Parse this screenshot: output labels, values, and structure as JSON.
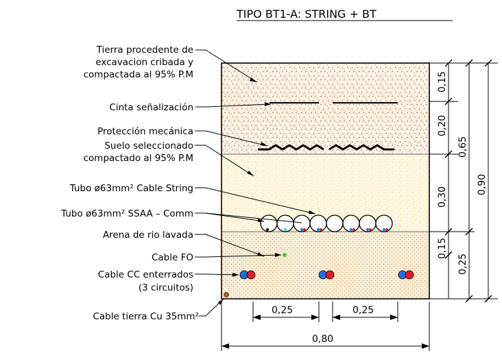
{
  "title": "TIPO BT1-A: STRING + BT",
  "labels": {
    "tierra_1": "Tierra procedente de",
    "tierra_2": "excavacion cribada y",
    "tierra_3": "compactada al 95% P.M",
    "cinta": "Cinta señalización",
    "proteccion": "Protección mecánica",
    "suelo_1": "Suelo seleccionado",
    "suelo_2": "compactado al 95% P.M",
    "tubo_string": "Tubo ø63mm² Cable String",
    "tubo_ssaa": "Tubo ø63mm² SSAA – Comm",
    "arena": "Arena de rio lavada",
    "cable_fo": "Cable FO",
    "cable_cc_1": "Cable CC enterrados",
    "cable_cc_2": "(3 circuitos)",
    "cable_tierra": "Cable tierra Cu 35mm²"
  },
  "dimensions": {
    "d_015_top": "0,15",
    "d_020": "0,20",
    "d_065": "0,65",
    "d_030": "0,30",
    "d_090": "0,90",
    "d_015_bot": "0,15",
    "d_025_right": "0,25",
    "d_025_left_h": "0,25",
    "d_025_right_h": "0,25",
    "d_080": "0,80"
  },
  "colors": {
    "soil": "#fdf3e6",
    "soil_dot": "#c27a4a",
    "select": "#fff8e2",
    "select_dot": "#e8c68a",
    "sand": "#f7ecd6",
    "sand_dot": "#d2a468",
    "cable_blue": "#1f6fe0",
    "cable_red": "#e01b24",
    "fo_green": "#3ad13a",
    "ground_cu": "#b85c1a"
  }
}
